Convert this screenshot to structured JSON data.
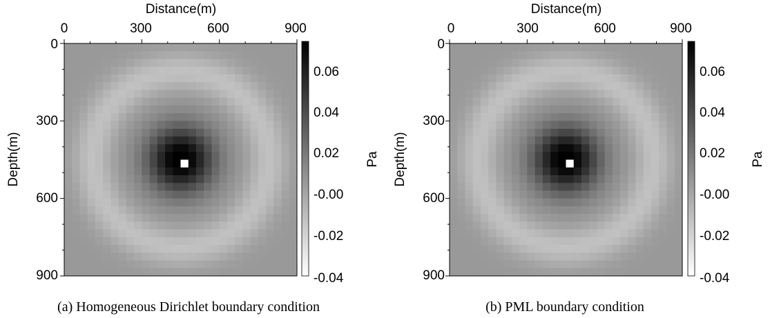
{
  "chart_data": [
    {
      "type": "heatmap",
      "caption": "(a) Homogeneous Dirichlet boundary condition",
      "xlabel": "Distance(m)",
      "ylabel": "Depth(m)",
      "xlim": [
        0,
        900
      ],
      "ylim": [
        0,
        900
      ],
      "y_inverted": true,
      "x_ticks": [
        "0",
        "300",
        "600",
        "900"
      ],
      "y_ticks": [
        "0",
        "300",
        "600",
        "900"
      ],
      "colorbar": {
        "label": "Pa",
        "range": [
          -0.04,
          0.075
        ],
        "ticks": [
          "0.06",
          "0.04",
          "0.02",
          "-0.00",
          "-0.02",
          "-0.04"
        ],
        "colormap": "grayscale (white = low, black = high)"
      },
      "grid_cells": 30,
      "source": {
        "x": 450,
        "z": 450,
        "peak": 0.075
      },
      "description": "Radially symmetric pressure wavefield centred at source; bright centre cell, dark ring, light outer ring"
    },
    {
      "type": "heatmap",
      "caption": "(b) PML boundary condition",
      "xlabel": "Distance(m)",
      "ylabel": "Depth(m)",
      "xlim": [
        0,
        900
      ],
      "ylim": [
        0,
        900
      ],
      "y_inverted": true,
      "x_ticks": [
        "0",
        "300",
        "600",
        "900"
      ],
      "y_ticks": [
        "0",
        "300",
        "600",
        "900"
      ],
      "colorbar": {
        "label": "Pa",
        "range": [
          -0.04,
          0.075
        ],
        "ticks": [
          "0.06",
          "0.04",
          "0.02",
          "-0.00",
          "-0.02",
          "-0.04"
        ],
        "colormap": "grayscale (white = low, black = high)"
      },
      "grid_cells": 30,
      "source": {
        "x": 450,
        "z": 450,
        "peak": 0.075
      },
      "description": "Radially symmetric pressure wavefield centred at source; bright centre cell, dark ring, light outer ring"
    }
  ]
}
